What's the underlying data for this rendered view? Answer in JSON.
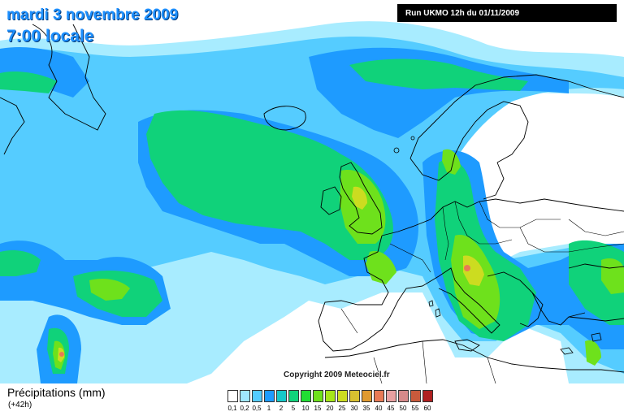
{
  "title": {
    "date": "mardi 3 novembre 2009",
    "time": "7:00 locale"
  },
  "run_info": "Run UKMO 12h du 01/11/2009",
  "copyright": "Copyright 2009 Meteociel.fr",
  "variable": {
    "name": "Précipitations (mm)",
    "lead": "(+42h)"
  },
  "legend": {
    "labels": [
      "0,1",
      "0,2",
      "0,5",
      "1",
      "2",
      "5",
      "10",
      "15",
      "20",
      "25",
      "30",
      "35",
      "40",
      "45",
      "50",
      "55",
      "60"
    ],
    "colors": [
      "#ffffff",
      "#a0e8ff",
      "#55ccff",
      "#1e9bff",
      "#16c8c8",
      "#10d27a",
      "#22dd33",
      "#6ee11c",
      "#a6e619",
      "#ccdc20",
      "#d8c030",
      "#e09a30",
      "#e87a55",
      "#e8a0a0",
      "#d68a8a",
      "#c85a3c",
      "#b02020"
    ]
  },
  "map_colors": {
    "land": "#ffffff",
    "sea": "#ffffff",
    "coast": "#000000",
    "precip_light": "#a8ecff",
    "precip_mid": "#55ccff",
    "precip_blue": "#1e9bff",
    "precip_teal": "#16c8c8",
    "precip_green": "#10d27a",
    "precip_lime": "#6ee11c",
    "precip_yellow": "#ccdc20",
    "precip_red": "#e87a55"
  }
}
